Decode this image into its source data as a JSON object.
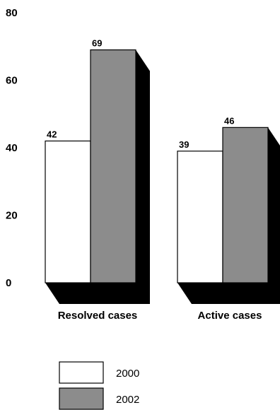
{
  "chart_data": {
    "type": "bar",
    "categories": [
      "Resolved cases",
      "Active cases"
    ],
    "series": [
      {
        "name": "2000",
        "values": [
          42,
          39
        ],
        "color": "#ffffff"
      },
      {
        "name": "2002",
        "values": [
          69,
          46
        ],
        "color": "#8c8c8c"
      }
    ],
    "yticks": [
      0,
      20,
      40,
      60,
      80
    ],
    "ylim": [
      0,
      80
    ],
    "grid": false,
    "legend": "bottom-center",
    "style": "3d-shadow",
    "shadow_color": "#000000"
  }
}
